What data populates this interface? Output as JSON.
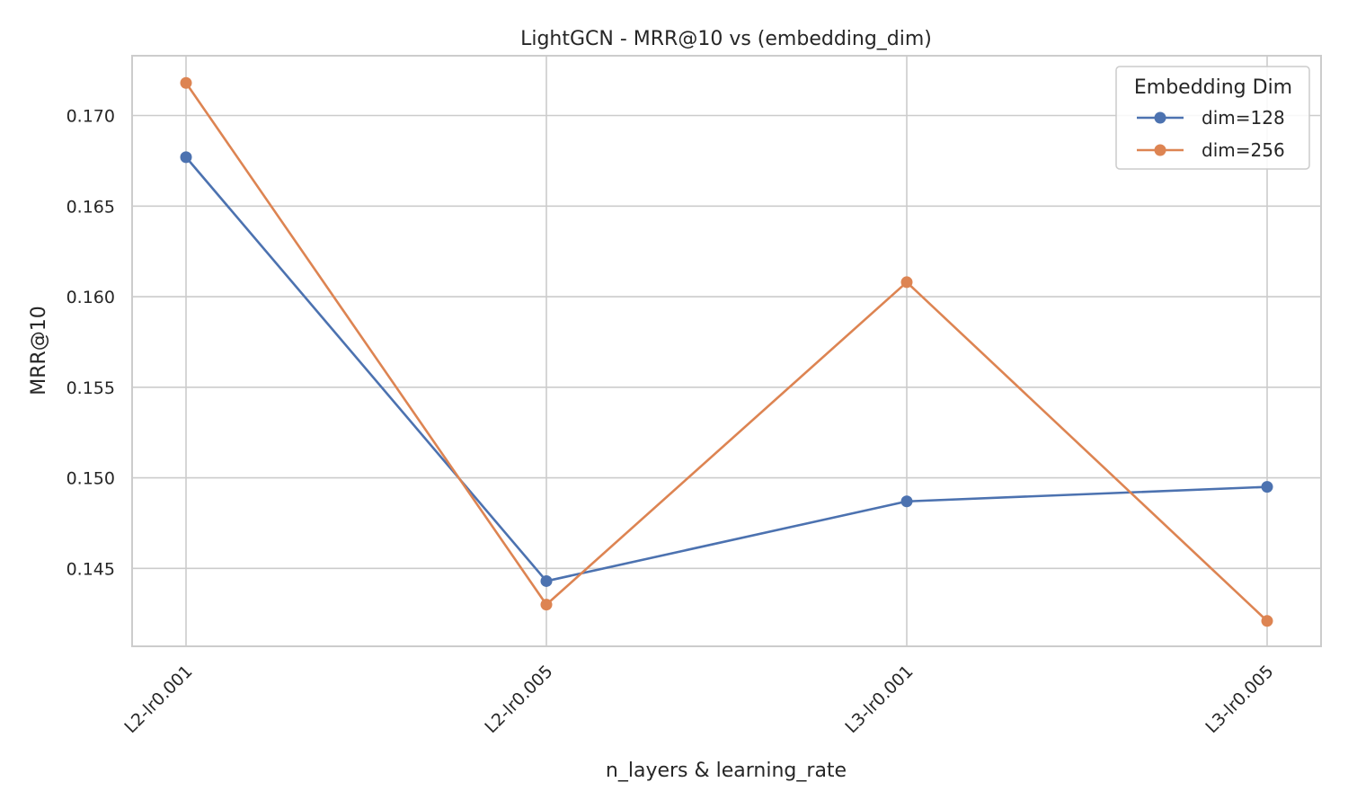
{
  "chart_data": {
    "type": "line",
    "title": "LightGCN - MRR@10 vs (embedding_dim)",
    "xlabel": "n_layers & learning_rate",
    "ylabel": "MRR@10",
    "categories": [
      "L2-lr0.001",
      "L2-lr0.005",
      "L3-lr0.001",
      "L3-lr0.005"
    ],
    "yticks": [
      "0.145",
      "0.150",
      "0.155",
      "0.160",
      "0.165",
      "0.170"
    ],
    "ylim": [
      0.1407,
      0.1733
    ],
    "grid": true,
    "legend": {
      "title": "Embedding Dim",
      "placement": "top-right"
    },
    "series": [
      {
        "name": "dim=128",
        "color": "#4c72b0",
        "values": [
          0.1677,
          0.1443,
          0.1487,
          0.1495
        ]
      },
      {
        "name": "dim=256",
        "color": "#dd8452",
        "values": [
          0.1718,
          0.143,
          0.1608,
          0.1421
        ]
      }
    ]
  }
}
